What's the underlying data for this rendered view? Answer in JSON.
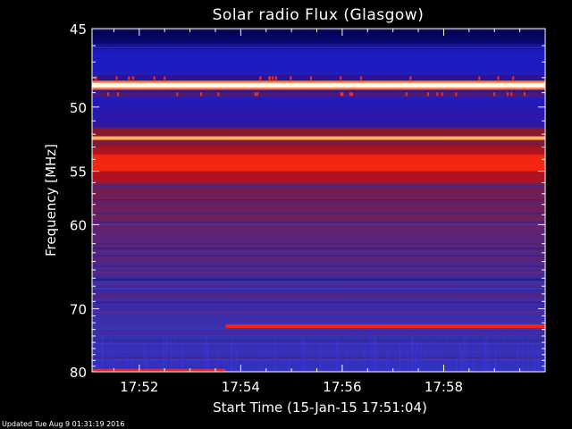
{
  "chart_data": {
    "type": "heatmap",
    "title": "Solar radio Flux (Glasgow)",
    "xlabel": "Start Time (15-Jan-15 17:51:04)",
    "ylabel": "Frequency [MHz]",
    "x_tick_labels": [
      "17:52",
      "17:54",
      "17:56",
      "17:58"
    ],
    "x_ticks_minutes": [
      52,
      54,
      56,
      58
    ],
    "xlim_minutes": [
      51.07,
      60.0
    ],
    "y_tick_labels": [
      "45",
      "50",
      "55",
      "60",
      "70",
      "80"
    ],
    "y_ticks": [
      45,
      50,
      55,
      60,
      70,
      80
    ],
    "ylim": [
      45,
      80
    ],
    "y_scale": "reciprocal",
    "grid": false,
    "colormap": [
      "#00005a",
      "#1a1aa0",
      "#3030d0",
      "#5a2a9a",
      "#7a2060",
      "#a01a20",
      "#d01010",
      "#ff3010",
      "#ffa040",
      "#ffffe0"
    ],
    "bands": [
      {
        "name": "48.5 MHz line",
        "freq": 48.5,
        "level": "white"
      },
      {
        "name": "52.3 MHz line",
        "freq": 52.3,
        "level": "orange"
      },
      {
        "name": "54.5 MHz band",
        "freq": 54.5,
        "level": "red"
      },
      {
        "name": "72.5 MHz line",
        "freq": 72.5,
        "level": "red",
        "start_minutes": 53.7
      },
      {
        "name": "79.8 MHz line",
        "freq": 79.8,
        "level": "red",
        "end_minutes": 53.7
      }
    ]
  },
  "footer": {
    "updated": "Updated Tue Aug  9 01:31:19 2016"
  }
}
